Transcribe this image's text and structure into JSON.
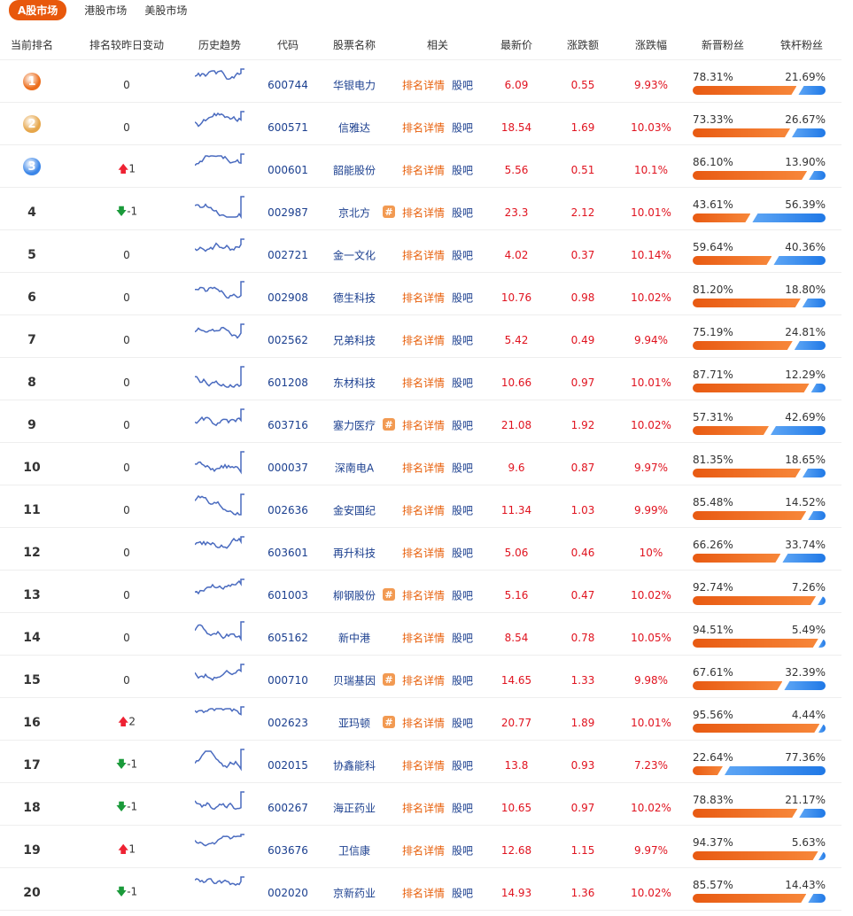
{
  "tabs": [
    "A股市场",
    "港股市场",
    "美股市场"
  ],
  "headers": [
    "当前排名",
    "排名较昨日变动",
    "历史趋势",
    "代码",
    "股票名称",
    "相关",
    "最新价",
    "涨跌额",
    "涨跌幅",
    "新晋粉丝",
    "铁杆粉丝"
  ],
  "detail_label": "排名详情",
  "guba_label": "股吧",
  "medal_colors": [
    "#ec6d1c",
    "#e6a64a",
    "#3b86e8"
  ],
  "rows": [
    {
      "rank": "1",
      "change": "0",
      "dir": "",
      "code": "600744",
      "name": "华银电力",
      "hash": false,
      "price": "6.09",
      "amt": "0.55",
      "pct": "9.93%",
      "nf": "78.31%",
      "tf": "21.69%"
    },
    {
      "rank": "2",
      "change": "0",
      "dir": "",
      "code": "600571",
      "name": "信雅达",
      "hash": false,
      "price": "18.54",
      "amt": "1.69",
      "pct": "10.03%",
      "nf": "73.33%",
      "tf": "26.67%"
    },
    {
      "rank": "3",
      "change": "1",
      "dir": "up",
      "code": "000601",
      "name": "韶能股份",
      "hash": false,
      "price": "5.56",
      "amt": "0.51",
      "pct": "10.1%",
      "nf": "86.10%",
      "tf": "13.90%"
    },
    {
      "rank": "4",
      "change": "-1",
      "dir": "down",
      "code": "002987",
      "name": "京北方",
      "hash": true,
      "price": "23.3",
      "amt": "2.12",
      "pct": "10.01%",
      "nf": "43.61%",
      "tf": "56.39%"
    },
    {
      "rank": "5",
      "change": "0",
      "dir": "",
      "code": "002721",
      "name": "金一文化",
      "hash": false,
      "price": "4.02",
      "amt": "0.37",
      "pct": "10.14%",
      "nf": "59.64%",
      "tf": "40.36%"
    },
    {
      "rank": "6",
      "change": "0",
      "dir": "",
      "code": "002908",
      "name": "德生科技",
      "hash": false,
      "price": "10.76",
      "amt": "0.98",
      "pct": "10.02%",
      "nf": "81.20%",
      "tf": "18.80%"
    },
    {
      "rank": "7",
      "change": "0",
      "dir": "",
      "code": "002562",
      "name": "兄弟科技",
      "hash": false,
      "price": "5.42",
      "amt": "0.49",
      "pct": "9.94%",
      "nf": "75.19%",
      "tf": "24.81%"
    },
    {
      "rank": "8",
      "change": "0",
      "dir": "",
      "code": "601208",
      "name": "东材科技",
      "hash": false,
      "price": "10.66",
      "amt": "0.97",
      "pct": "10.01%",
      "nf": "87.71%",
      "tf": "12.29%"
    },
    {
      "rank": "9",
      "change": "0",
      "dir": "",
      "code": "603716",
      "name": "塞力医疗",
      "hash": true,
      "price": "21.08",
      "amt": "1.92",
      "pct": "10.02%",
      "nf": "57.31%",
      "tf": "42.69%"
    },
    {
      "rank": "10",
      "change": "0",
      "dir": "",
      "code": "000037",
      "name": "深南电A",
      "hash": false,
      "price": "9.6",
      "amt": "0.87",
      "pct": "9.97%",
      "nf": "81.35%",
      "tf": "18.65%"
    },
    {
      "rank": "11",
      "change": "0",
      "dir": "",
      "code": "002636",
      "name": "金安国纪",
      "hash": false,
      "price": "11.34",
      "amt": "1.03",
      "pct": "9.99%",
      "nf": "85.48%",
      "tf": "14.52%"
    },
    {
      "rank": "12",
      "change": "0",
      "dir": "",
      "code": "603601",
      "name": "再升科技",
      "hash": false,
      "price": "5.06",
      "amt": "0.46",
      "pct": "10%",
      "nf": "66.26%",
      "tf": "33.74%"
    },
    {
      "rank": "13",
      "change": "0",
      "dir": "",
      "code": "601003",
      "name": "柳钢股份",
      "hash": true,
      "price": "5.16",
      "amt": "0.47",
      "pct": "10.02%",
      "nf": "92.74%",
      "tf": "7.26%"
    },
    {
      "rank": "14",
      "change": "0",
      "dir": "",
      "code": "605162",
      "name": "新中港",
      "hash": false,
      "price": "8.54",
      "amt": "0.78",
      "pct": "10.05%",
      "nf": "94.51%",
      "tf": "5.49%"
    },
    {
      "rank": "15",
      "change": "0",
      "dir": "",
      "code": "000710",
      "name": "贝瑞基因",
      "hash": true,
      "price": "14.65",
      "amt": "1.33",
      "pct": "9.98%",
      "nf": "67.61%",
      "tf": "32.39%"
    },
    {
      "rank": "16",
      "change": "2",
      "dir": "up",
      "code": "002623",
      "name": "亚玛顿",
      "hash": true,
      "price": "20.77",
      "amt": "1.89",
      "pct": "10.01%",
      "nf": "95.56%",
      "tf": "4.44%"
    },
    {
      "rank": "17",
      "change": "-1",
      "dir": "down",
      "code": "002015",
      "name": "协鑫能科",
      "hash": false,
      "price": "13.8",
      "amt": "0.93",
      "pct": "7.23%",
      "nf": "22.64%",
      "tf": "77.36%"
    },
    {
      "rank": "18",
      "change": "-1",
      "dir": "down",
      "code": "600267",
      "name": "海正药业",
      "hash": false,
      "price": "10.65",
      "amt": "0.97",
      "pct": "10.02%",
      "nf": "78.83%",
      "tf": "21.17%"
    },
    {
      "rank": "19",
      "change": "1",
      "dir": "up",
      "code": "603676",
      "name": "卫信康",
      "hash": false,
      "price": "12.68",
      "amt": "1.15",
      "pct": "9.97%",
      "nf": "94.37%",
      "tf": "5.63%"
    },
    {
      "rank": "20",
      "change": "-1",
      "dir": "down",
      "code": "002020",
      "name": "京新药业",
      "hash": false,
      "price": "14.93",
      "amt": "1.36",
      "pct": "10.02%",
      "nf": "85.57%",
      "tf": "14.43%"
    }
  ]
}
